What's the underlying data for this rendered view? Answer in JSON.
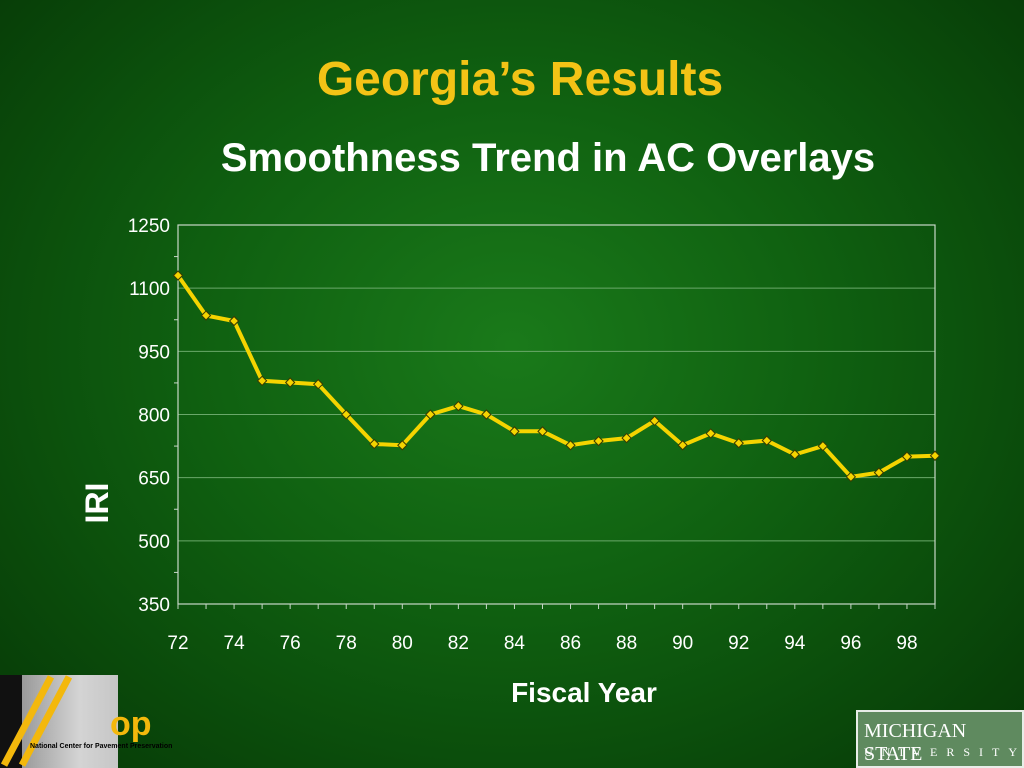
{
  "slide": {
    "title": "Georgia’s Results",
    "subtitle": "Smoothness Trend in AC Overlays"
  },
  "logos": {
    "left_brand": "op",
    "left_caption": "National Center for Pavement Preservation",
    "right_line1": "MICHIGAN STATE",
    "right_line2": "UNIVERSITY"
  },
  "colors": {
    "title": "#f3c316",
    "line": "#f5d400",
    "marker": "#f5d400",
    "plot_border": "#c8d8c8",
    "gridline": "#6aa86a"
  },
  "chart_data": {
    "type": "line",
    "xlabel": "Fiscal Year",
    "ylabel": "IRI",
    "ylim": [
      350,
      1250
    ],
    "yticks": [
      350,
      500,
      650,
      800,
      950,
      1100,
      1250
    ],
    "xticks": [
      "72",
      "74",
      "76",
      "78",
      "80",
      "82",
      "84",
      "86",
      "88",
      "90",
      "92",
      "94",
      "96",
      "98"
    ],
    "grid": true,
    "legend": "none",
    "x": [
      72,
      73,
      74,
      75,
      76,
      77,
      78,
      79,
      80,
      81,
      82,
      83,
      84,
      85,
      86,
      87,
      88,
      89,
      90,
      91,
      92,
      93,
      94,
      95,
      96,
      97,
      98,
      99
    ],
    "series": [
      {
        "values": [
          1130,
          1035,
          1022,
          880,
          876,
          872,
          800,
          730,
          727,
          800,
          820,
          800,
          760,
          760,
          727,
          737,
          744,
          785,
          727,
          755,
          732,
          738,
          705,
          725,
          652,
          662,
          700,
          702
        ]
      }
    ]
  }
}
